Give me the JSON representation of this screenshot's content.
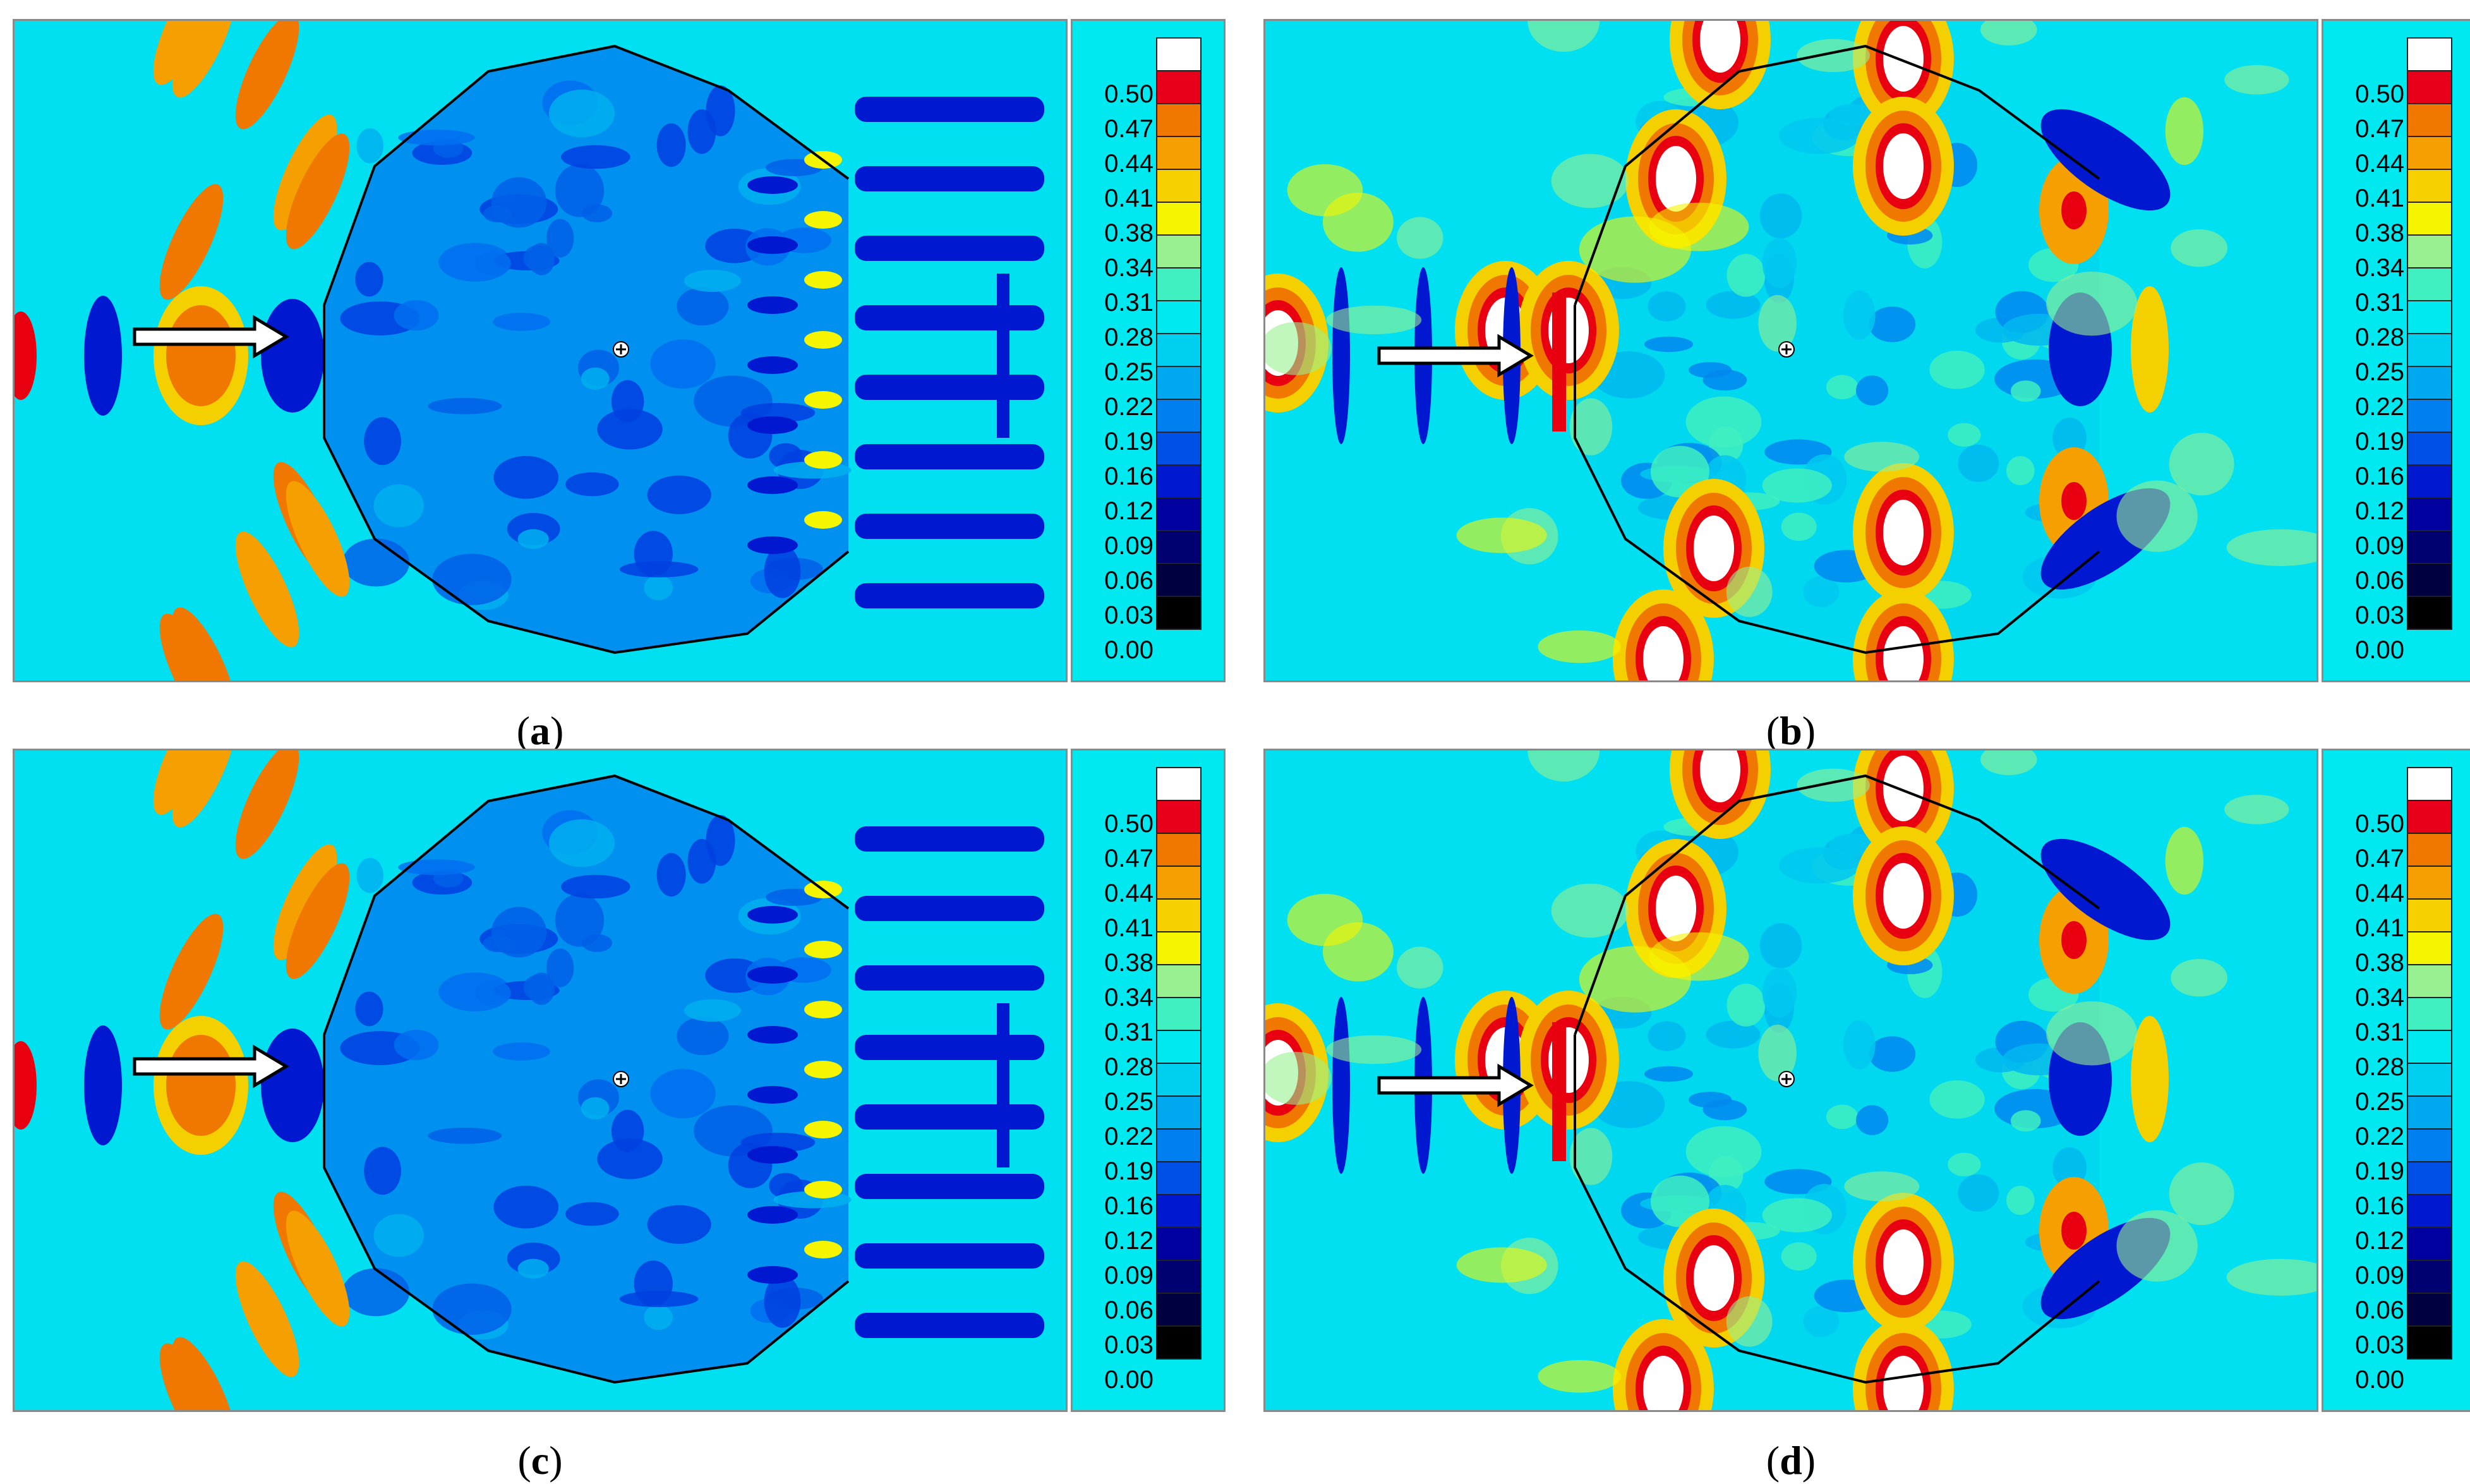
{
  "panels": [
    {
      "id": "a",
      "variant": "low",
      "caption_open": "(",
      "caption_letter": "a",
      "caption_close": ")"
    },
    {
      "id": "b",
      "variant": "high",
      "caption_open": "(",
      "caption_letter": "b",
      "caption_close": ")"
    },
    {
      "id": "c",
      "variant": "low",
      "caption_open": "(",
      "caption_letter": "c",
      "caption_close": ")"
    },
    {
      "id": "d",
      "variant": "high",
      "caption_open": "(",
      "caption_letter": "d",
      "caption_close": ")"
    }
  ],
  "colorbar": {
    "levels": [
      "0.50",
      "0.47",
      "0.44",
      "0.41",
      "0.38",
      "0.34",
      "0.31",
      "0.28",
      "0.25",
      "0.22",
      "0.19",
      "0.16",
      "0.12",
      "0.09",
      "0.06",
      "0.03",
      "0.00"
    ],
    "colors": [
      "#ffffff",
      "#e8001a",
      "#f07800",
      "#f5a000",
      "#f7d000",
      "#f5f500",
      "#98f090",
      "#40f0c0",
      "#00e8f0",
      "#00d0f0",
      "#00a8f0",
      "#0080f0",
      "#0050e8",
      "#0018d0",
      "#0000a0",
      "#000070",
      "#000040",
      "#000000"
    ]
  },
  "chart_data": {
    "type": "heatmap",
    "title": "",
    "xlabel": "",
    "ylabel": "",
    "colorbar_range": [
      0.0,
      0.5
    ],
    "colorbar_ticks": [
      0.5,
      0.47,
      0.44,
      0.41,
      0.38,
      0.34,
      0.31,
      0.28,
      0.25,
      0.22,
      0.19,
      0.16,
      0.12,
      0.09,
      0.06,
      0.03,
      0.0
    ],
    "subplots": [
      "a",
      "b",
      "c",
      "d"
    ]
  }
}
